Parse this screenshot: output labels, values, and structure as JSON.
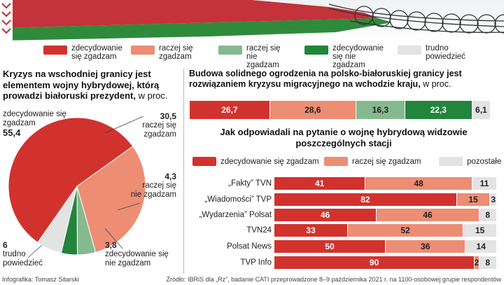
{
  "colors": {
    "strong_agree": "#d2322d",
    "rather_agree": "#ec8d74",
    "rather_disagree": "#86b98f",
    "strong_disagree": "#23843d",
    "hard_to_say": "#e3e3e3",
    "banner_red": "#c4323a",
    "banner_green": "#2e8b3c"
  },
  "legend_top": [
    {
      "label": "zdecydowanie się zgadzam",
      "color": "#d2322d"
    },
    {
      "label": "raczej się zgadzam",
      "color": "#ec8d74"
    },
    {
      "label": "raczej się nie zgadzam",
      "color": "#86b98f"
    },
    {
      "label": "zdecydowanie się nie zgadzam",
      "color": "#23843d"
    },
    {
      "label": "trudno powiedzieć",
      "color": "#e3e3e3"
    }
  ],
  "pie_title": "Kryzys na wschodniej granicy jest elementem wojny hybrydowej, którą prowadzi białoruski prezydent,",
  "pie_unit": "w proc.",
  "bar1_title": "Budowa solidnego ogrodzenia na polsko-białoruskiej granicy jest rozwiązaniem kryzysu migracyjnego na wchodzie kraju,",
  "bar1_unit": "w proc.",
  "bars_title": "Jak odpowiadali na pytanie o wojnę hybrydową widzowie poszczególnych stacji",
  "legend_bars": [
    {
      "label": "zdecydowanie się zgadzam",
      "color": "#d2322d"
    },
    {
      "label": "raczej się zgadzam",
      "color": "#ec8d74"
    },
    {
      "label": "pozostałe",
      "color": "#e3e3e3"
    }
  ],
  "chart_data": [
    {
      "type": "pie",
      "title": "Kryzys na wschodniej granicy jest elementem wojny hybrydowej, którą prowadzi białoruski prezydent, w proc.",
      "slices": [
        {
          "label": "zdecydowanie się zgadzam",
          "value": 55.4,
          "display": "55,4",
          "color": "#d2322d"
        },
        {
          "label": "raczej się zgadzam",
          "value": 30.5,
          "display": "30,5",
          "color": "#ec8d74"
        },
        {
          "label": "raczej się nie zgadzam",
          "value": 4.3,
          "display": "4,3",
          "color": "#86b98f"
        },
        {
          "label": "zdecydowanie się nie zgadzam",
          "value": 3.8,
          "display": "3,8",
          "color": "#23843d"
        },
        {
          "label": "trudno powiedzieć",
          "value": 6,
          "display": "6",
          "color": "#e3e3e3"
        }
      ]
    },
    {
      "type": "bar",
      "orientation": "horizontal-stacked",
      "title": "Budowa solidnego ogrodzenia na polsko-białoruskiej granicy jest rozwiązaniem kryzysu migracyjnego na wchodzie kraju, w proc.",
      "segments": [
        {
          "label": "zdecydowanie się zgadzam",
          "value": 26.7,
          "display": "26,7",
          "color": "#d2322d"
        },
        {
          "label": "raczej się zgadzam",
          "value": 28.6,
          "display": "28,6",
          "color": "#ec8d74"
        },
        {
          "label": "raczej się nie zgadzam",
          "value": 16.3,
          "display": "16,3",
          "color": "#86b98f"
        },
        {
          "label": "zdecydowanie się nie zgadzam",
          "value": 22.3,
          "display": "22,3",
          "color": "#23843d"
        },
        {
          "label": "trudno powiedzieć",
          "value": 6.1,
          "display": "6,1",
          "color": "#e3e3e3"
        }
      ]
    },
    {
      "type": "bar",
      "orientation": "horizontal-stacked",
      "title": "Jak odpowiadali na pytanie o wojnę hybrydową widzowie poszczególnych stacji",
      "categories": [
        "„Fakty” TVN",
        "„Wiadomości” TVP",
        "„Wydarzenia” Polsat",
        "TVN24",
        "Polsat News",
        "TVP Info"
      ],
      "series": [
        {
          "name": "zdecydowanie się zgadzam",
          "color": "#d2322d",
          "values": [
            41,
            82,
            46,
            33,
            50,
            90
          ]
        },
        {
          "name": "raczej się zgadzam",
          "color": "#ec8d74",
          "values": [
            48,
            15,
            46,
            52,
            36,
            2
          ]
        },
        {
          "name": "pozostałe",
          "color": "#e3e3e3",
          "values": [
            11,
            3,
            8,
            15,
            14,
            8
          ]
        }
      ]
    }
  ],
  "footer_left": "Infografika: Tomasz Sitarski",
  "footer_right": "Źródło: IBRiS dla „Rz”, badanie CATI przeprowadzone 8–9 października 2021 r. na 1100-osobowej grupie respondentów"
}
